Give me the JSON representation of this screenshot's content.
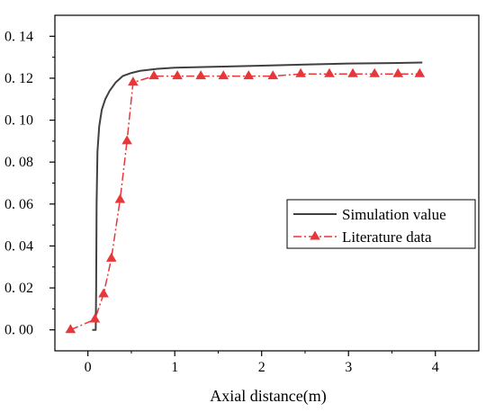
{
  "chart_data": {
    "type": "line",
    "title": "",
    "xlabel": "Axial distance(m)",
    "ylabel": "",
    "xlim": [
      -0.38,
      4.5
    ],
    "ylim": [
      -0.01,
      0.15
    ],
    "x_ticks": [
      0,
      1,
      2,
      3,
      4
    ],
    "x_tick_labels": [
      "0",
      "1",
      "2",
      "3",
      "4"
    ],
    "y_ticks": [
      0.0,
      0.02,
      0.04,
      0.06,
      0.08,
      0.1,
      0.12,
      0.14
    ],
    "y_tick_labels": [
      "0. 00",
      "0. 02",
      "0. 04",
      "0. 06",
      "0. 08",
      "0. 10",
      "0. 12",
      "0. 14"
    ],
    "legend_position": "center-right",
    "grid": false,
    "series": [
      {
        "name": "Simulation value",
        "color": "#404040",
        "marker": "none",
        "line_style": "solid",
        "x": [
          0.05,
          0.08,
          0.09,
          0.095,
          0.1,
          0.11,
          0.13,
          0.16,
          0.2,
          0.25,
          0.32,
          0.4,
          0.5,
          0.6,
          0.8,
          1.0,
          1.5,
          2.0,
          2.5,
          3.0,
          3.5,
          3.85
        ],
        "y": [
          0.0,
          0.0,
          0.0,
          0.02,
          0.06,
          0.085,
          0.097,
          0.105,
          0.11,
          0.114,
          0.118,
          0.121,
          0.1225,
          0.1235,
          0.1245,
          0.125,
          0.1255,
          0.126,
          0.1265,
          0.127,
          0.1272,
          0.1275
        ]
      },
      {
        "name": "Literature data",
        "color": "#e8373a",
        "marker": "triangle",
        "line_style": "dash-dot",
        "x": [
          -0.2,
          0.08,
          0.18,
          0.27,
          0.37,
          0.45,
          0.52,
          0.76,
          1.03,
          1.3,
          1.56,
          1.85,
          2.13,
          2.45,
          2.78,
          3.05,
          3.3,
          3.57,
          3.82
        ],
        "y": [
          0.0,
          0.005,
          0.017,
          0.034,
          0.062,
          0.09,
          0.118,
          0.121,
          0.121,
          0.121,
          0.121,
          0.121,
          0.121,
          0.122,
          0.122,
          0.122,
          0.122,
          0.122,
          0.122
        ]
      }
    ]
  }
}
